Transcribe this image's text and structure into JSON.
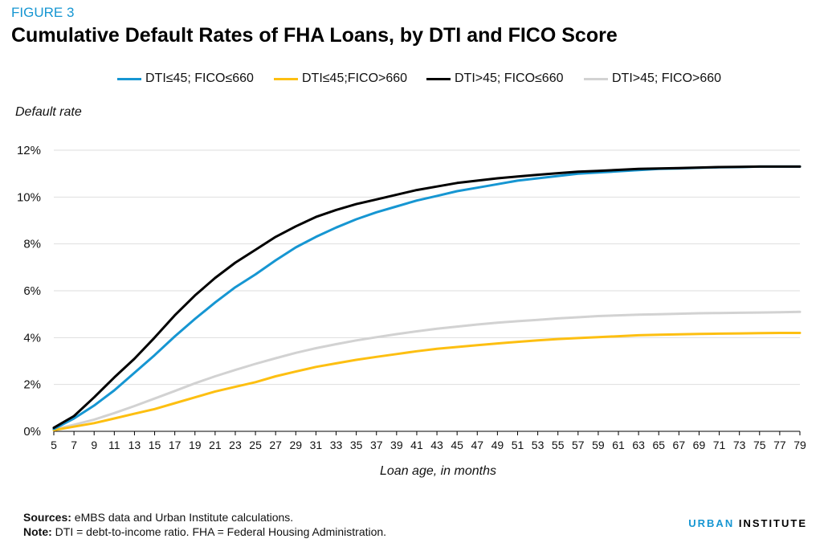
{
  "figure_label": "FIGURE 3",
  "title": "Cumulative Default Rates of FHA Loans, by DTI and FICO Score",
  "footer": {
    "sources_label": "Sources:",
    "sources_text": " eMBS data and Urban Institute calculations.",
    "note_label": "Note:",
    "note_text": " DTI = debt-to-income ratio. FHA = Federal Housing Administration."
  },
  "brand": {
    "part1": "URBAN",
    "part2": " INSTITUTE"
  },
  "chart_data": {
    "type": "line",
    "title": "Cumulative Default Rates of FHA Loans, by DTI and FICO Score",
    "xlabel": "Loan age, in months",
    "ylabel": "Default rate",
    "xlim": [
      5,
      79
    ],
    "ylim": [
      0,
      12
    ],
    "x_ticks": [
      5,
      7,
      9,
      11,
      13,
      15,
      17,
      19,
      21,
      23,
      25,
      27,
      29,
      31,
      33,
      35,
      37,
      39,
      41,
      43,
      45,
      47,
      49,
      51,
      53,
      55,
      57,
      59,
      61,
      63,
      65,
      67,
      69,
      71,
      73,
      75,
      77,
      79
    ],
    "y_ticks": [
      0,
      2,
      4,
      6,
      8,
      10,
      12
    ],
    "y_tick_labels": [
      "0%",
      "2%",
      "4%",
      "6%",
      "8%",
      "10%",
      "12%"
    ],
    "grid": "horizontal",
    "legend_position": "top",
    "x": [
      5,
      7,
      9,
      11,
      13,
      15,
      17,
      19,
      21,
      23,
      25,
      27,
      29,
      31,
      33,
      35,
      37,
      39,
      41,
      43,
      45,
      47,
      49,
      51,
      53,
      55,
      57,
      59,
      61,
      63,
      65,
      67,
      69,
      71,
      73,
      75,
      77,
      79
    ],
    "series": [
      {
        "name": "DTI≤45; FICO≤660",
        "color": "#1696d2",
        "values": [
          0.1,
          0.55,
          1.1,
          1.75,
          2.5,
          3.25,
          4.05,
          4.8,
          5.5,
          6.15,
          6.7,
          7.3,
          7.85,
          8.3,
          8.7,
          9.05,
          9.35,
          9.6,
          9.85,
          10.05,
          10.25,
          10.4,
          10.55,
          10.7,
          10.8,
          10.9,
          11.0,
          11.05,
          11.1,
          11.15,
          11.2,
          11.22,
          11.25,
          11.27,
          11.28,
          11.3,
          11.3,
          11.3
        ]
      },
      {
        "name": "DTI≤45;FICO>660",
        "color": "#fdbf11",
        "values": [
          0.05,
          0.2,
          0.35,
          0.55,
          0.75,
          0.95,
          1.2,
          1.45,
          1.7,
          1.9,
          2.1,
          2.35,
          2.55,
          2.75,
          2.9,
          3.05,
          3.18,
          3.3,
          3.42,
          3.52,
          3.6,
          3.68,
          3.75,
          3.82,
          3.88,
          3.94,
          3.98,
          4.02,
          4.06,
          4.1,
          4.12,
          4.14,
          4.16,
          4.17,
          4.18,
          4.19,
          4.2,
          4.2
        ]
      },
      {
        "name": "DTI>45; FICO≤660",
        "color": "#000000",
        "values": [
          0.15,
          0.65,
          1.45,
          2.3,
          3.1,
          4.0,
          4.95,
          5.8,
          6.55,
          7.2,
          7.75,
          8.3,
          8.75,
          9.15,
          9.45,
          9.7,
          9.9,
          10.1,
          10.3,
          10.45,
          10.6,
          10.7,
          10.8,
          10.88,
          10.95,
          11.02,
          11.08,
          11.12,
          11.16,
          11.2,
          11.22,
          11.24,
          11.26,
          11.28,
          11.29,
          11.3,
          11.3,
          11.3
        ]
      },
      {
        "name": "DTI>45; FICO>660",
        "color": "#d2d2d2",
        "values": [
          0.08,
          0.28,
          0.5,
          0.78,
          1.08,
          1.4,
          1.72,
          2.05,
          2.35,
          2.62,
          2.88,
          3.12,
          3.35,
          3.55,
          3.72,
          3.88,
          4.02,
          4.15,
          4.27,
          4.38,
          4.47,
          4.56,
          4.64,
          4.7,
          4.76,
          4.82,
          4.87,
          4.92,
          4.95,
          4.98,
          5.0,
          5.02,
          5.04,
          5.05,
          5.06,
          5.07,
          5.08,
          5.1
        ]
      }
    ]
  }
}
